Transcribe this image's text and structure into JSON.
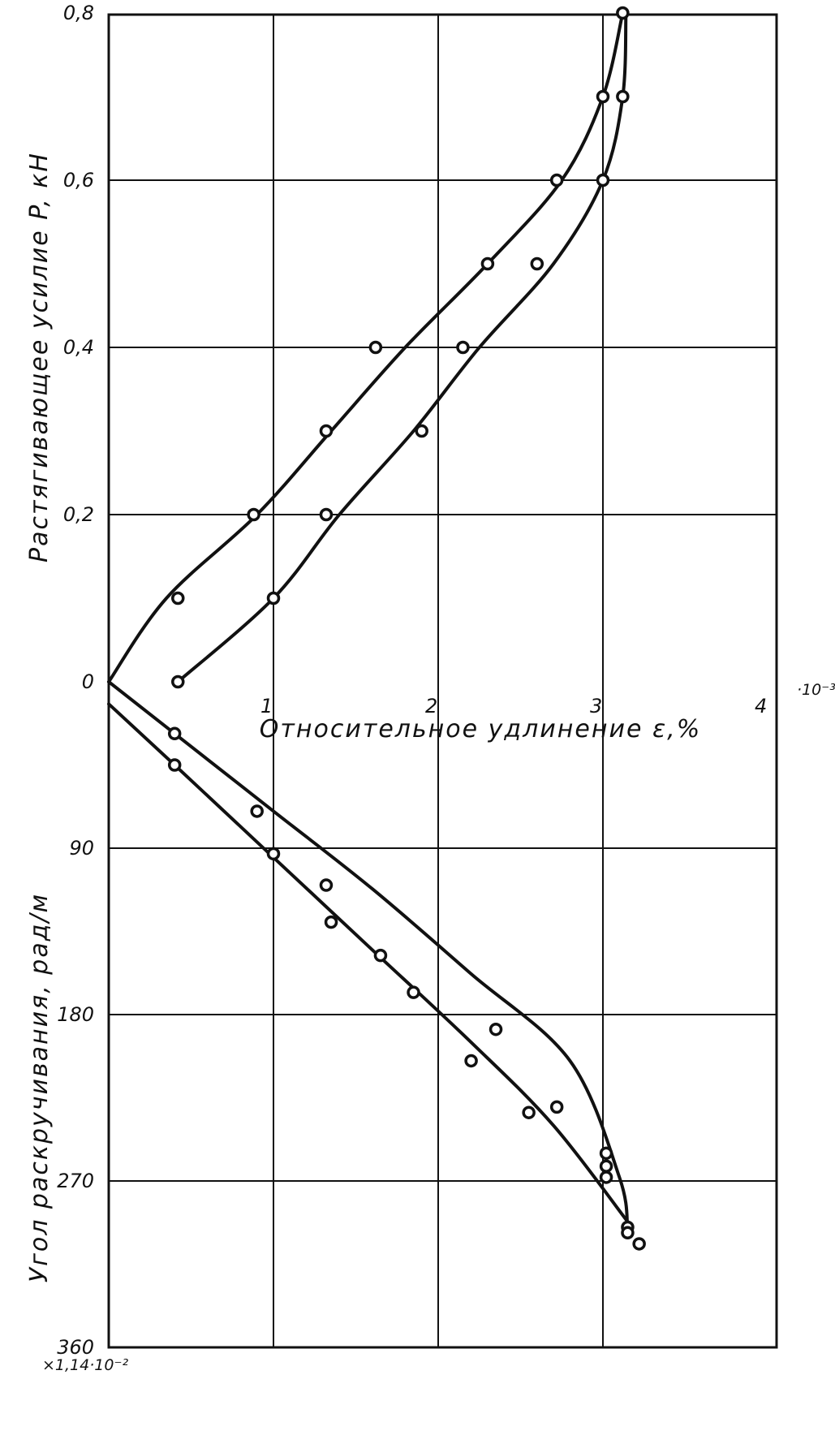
{
  "chart_data": [
    {
      "type": "line",
      "panel": "top",
      "ylabel": "Растягивающее усилие P, кН",
      "xlabel": "Относительное удлинение ε,%",
      "x_tick_labels": [
        "1",
        "2",
        "3",
        "4"
      ],
      "x_exponent_label": "·10⁻³",
      "y_tick_labels": [
        "0",
        "0,2",
        "0,4",
        "0,6",
        "0,8"
      ],
      "xlim": [
        0,
        4
      ],
      "ylim": [
        0,
        0.8
      ],
      "grid": true,
      "series": [
        {
          "curve": [
            [
              0,
              0
            ],
            [
              0.35,
              0.1
            ],
            [
              0.9,
              0.2
            ],
            [
              1.35,
              0.3
            ],
            [
              1.8,
              0.4
            ],
            [
              2.3,
              0.5
            ],
            [
              2.75,
              0.6
            ],
            [
              3.0,
              0.7
            ],
            [
              3.12,
              0.8
            ]
          ],
          "points": [
            [
              0.42,
              0.1
            ],
            [
              0.88,
              0.2
            ],
            [
              1.32,
              0.3
            ],
            [
              1.62,
              0.4
            ],
            [
              2.3,
              0.5
            ],
            [
              2.72,
              0.6
            ],
            [
              3.0,
              0.7
            ],
            [
              3.12,
              0.8
            ]
          ]
        },
        {
          "curve": [
            [
              0.42,
              0
            ],
            [
              1.0,
              0.1
            ],
            [
              1.4,
              0.2
            ],
            [
              1.85,
              0.3
            ],
            [
              2.25,
              0.4
            ],
            [
              2.7,
              0.5
            ],
            [
              3.0,
              0.6
            ],
            [
              3.12,
              0.7
            ],
            [
              3.14,
              0.8
            ]
          ],
          "points": [
            [
              0.42,
              0
            ],
            [
              1.0,
              0.1
            ],
            [
              1.32,
              0.2
            ],
            [
              1.9,
              0.3
            ],
            [
              2.15,
              0.4
            ],
            [
              2.6,
              0.5
            ],
            [
              3.0,
              0.6
            ],
            [
              3.12,
              0.7
            ]
          ]
        }
      ]
    },
    {
      "type": "line",
      "panel": "bottom",
      "ylabel": "Угол раскручивания, рад/м",
      "y_tick_labels": [
        "90",
        "180",
        "270",
        "360"
      ],
      "y_factor_label": "×1,14·10⁻²",
      "xlim": [
        0,
        4
      ],
      "ylim": [
        0,
        360
      ],
      "y_inverted": true,
      "grid": true,
      "series": [
        {
          "curve": [
            [
              0,
              0
            ],
            [
              0.4,
              28
            ],
            [
              1.0,
              70
            ],
            [
              1.6,
              112
            ],
            [
              2.2,
              158
            ],
            [
              2.8,
              205
            ],
            [
              3.1,
              268
            ],
            [
              3.15,
              295
            ]
          ],
          "points": [
            [
              0.4,
              28
            ],
            [
              0.9,
              70
            ],
            [
              1.32,
              110
            ],
            [
              1.85,
              168
            ],
            [
              2.35,
              188
            ],
            [
              2.72,
              230
            ],
            [
              3.02,
              255
            ],
            [
              3.02,
              262
            ],
            [
              3.02,
              268
            ],
            [
              3.15,
              295
            ]
          ]
        },
        {
          "curve": [
            [
              0,
              12
            ],
            [
              0.4,
              45
            ],
            [
              1.0,
              95
            ],
            [
              1.6,
              145
            ],
            [
              2.2,
              195
            ],
            [
              2.7,
              240
            ],
            [
              3.15,
              292
            ]
          ],
          "points": [
            [
              0.4,
              45
            ],
            [
              1.0,
              93
            ],
            [
              1.35,
              130
            ],
            [
              1.65,
              148
            ],
            [
              2.2,
              205
            ],
            [
              2.55,
              233
            ],
            [
              3.15,
              298
            ],
            [
              3.22,
              304
            ]
          ]
        }
      ]
    }
  ]
}
